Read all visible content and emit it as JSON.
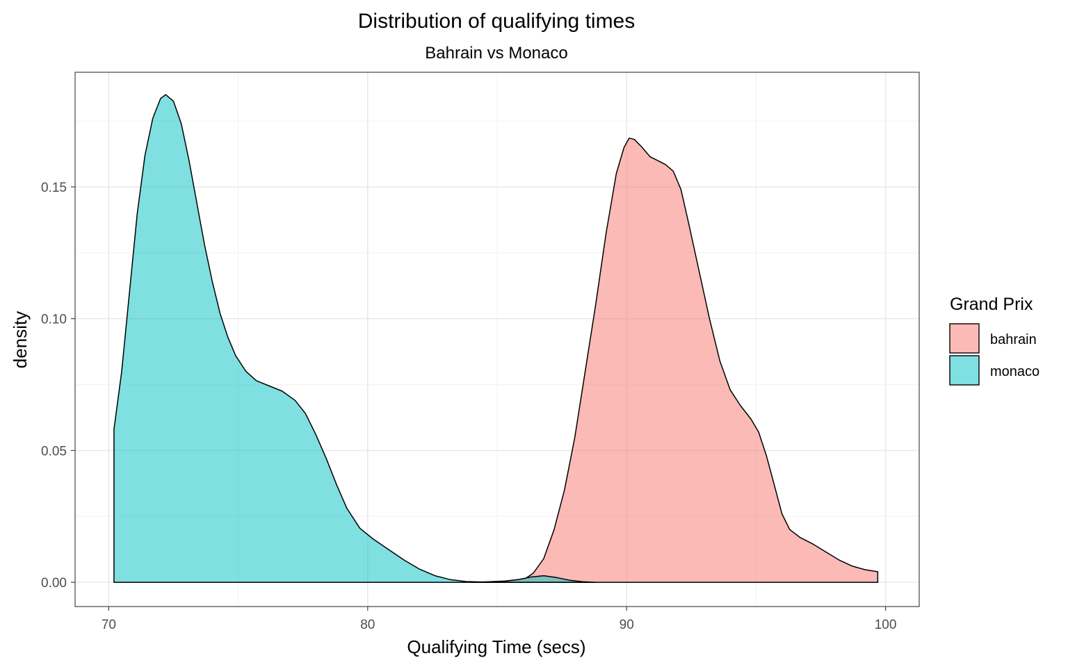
{
  "chart_data": {
    "type": "area",
    "title": "Distribution of qualifying times",
    "subtitle": "Bahrain vs Monaco",
    "xlabel": "Qualifying Time (secs)",
    "ylabel": "density",
    "xlim": [
      68.7,
      101.3
    ],
    "ylim": [
      -0.0092,
      0.1935
    ],
    "x_ticks": [
      70,
      80,
      90,
      100
    ],
    "x_tick_labels": [
      "70",
      "80",
      "90",
      "100"
    ],
    "y_ticks": [
      0.0,
      0.05,
      0.1,
      0.15
    ],
    "y_tick_labels": [
      "0.00",
      "0.05",
      "0.10",
      "0.15"
    ],
    "grid": true,
    "legend": {
      "title": "Grand Prix",
      "placement": "right"
    },
    "series": [
      {
        "name": "bahrain",
        "color": "#F8766D",
        "points": [
          [
            84.0,
            0.0
          ],
          [
            84.7,
            0.0002
          ],
          [
            85.3,
            0.0005
          ],
          [
            85.8,
            0.001
          ],
          [
            86.1,
            0.0015
          ],
          [
            86.4,
            0.0035
          ],
          [
            86.8,
            0.009
          ],
          [
            87.2,
            0.02
          ],
          [
            87.6,
            0.035
          ],
          [
            88.0,
            0.055
          ],
          [
            88.4,
            0.08
          ],
          [
            88.8,
            0.105
          ],
          [
            89.2,
            0.132
          ],
          [
            89.6,
            0.155
          ],
          [
            89.9,
            0.165
          ],
          [
            90.1,
            0.1685
          ],
          [
            90.3,
            0.168
          ],
          [
            90.6,
            0.165
          ],
          [
            90.9,
            0.1615
          ],
          [
            91.2,
            0.16
          ],
          [
            91.5,
            0.1585
          ],
          [
            91.8,
            0.156
          ],
          [
            92.1,
            0.149
          ],
          [
            92.4,
            0.136
          ],
          [
            92.8,
            0.118
          ],
          [
            93.2,
            0.1
          ],
          [
            93.6,
            0.084
          ],
          [
            94.0,
            0.073
          ],
          [
            94.4,
            0.067
          ],
          [
            94.8,
            0.062
          ],
          [
            95.1,
            0.057
          ],
          [
            95.4,
            0.048
          ],
          [
            95.7,
            0.037
          ],
          [
            96.0,
            0.026
          ],
          [
            96.3,
            0.02
          ],
          [
            96.7,
            0.017
          ],
          [
            97.2,
            0.0145
          ],
          [
            97.7,
            0.0115
          ],
          [
            98.2,
            0.0085
          ],
          [
            98.7,
            0.0062
          ],
          [
            99.2,
            0.0048
          ],
          [
            99.7,
            0.004
          ]
        ]
      },
      {
        "name": "monaco",
        "color": "#00BFC4",
        "points": [
          [
            70.2,
            0.058
          ],
          [
            70.5,
            0.08
          ],
          [
            70.8,
            0.11
          ],
          [
            71.1,
            0.14
          ],
          [
            71.4,
            0.162
          ],
          [
            71.7,
            0.176
          ],
          [
            72.0,
            0.1835
          ],
          [
            72.2,
            0.185
          ],
          [
            72.5,
            0.1825
          ],
          [
            72.8,
            0.174
          ],
          [
            73.1,
            0.16
          ],
          [
            73.4,
            0.144
          ],
          [
            73.7,
            0.128
          ],
          [
            74.0,
            0.114
          ],
          [
            74.3,
            0.102
          ],
          [
            74.6,
            0.093
          ],
          [
            74.9,
            0.086
          ],
          [
            75.3,
            0.08
          ],
          [
            75.7,
            0.0765
          ],
          [
            76.2,
            0.0745
          ],
          [
            76.7,
            0.0725
          ],
          [
            77.2,
            0.069
          ],
          [
            77.6,
            0.064
          ],
          [
            78.0,
            0.056
          ],
          [
            78.4,
            0.047
          ],
          [
            78.8,
            0.037
          ],
          [
            79.2,
            0.028
          ],
          [
            79.7,
            0.0205
          ],
          [
            80.2,
            0.0165
          ],
          [
            80.8,
            0.0125
          ],
          [
            81.4,
            0.0085
          ],
          [
            82.0,
            0.005
          ],
          [
            82.6,
            0.0025
          ],
          [
            83.2,
            0.001
          ],
          [
            83.8,
            0.0003
          ],
          [
            84.5,
            0.0001
          ],
          [
            85.2,
            0.0003
          ],
          [
            85.8,
            0.001
          ],
          [
            86.3,
            0.002
          ],
          [
            86.8,
            0.0025
          ],
          [
            87.3,
            0.0018
          ],
          [
            87.8,
            0.0008
          ],
          [
            88.3,
            0.0002
          ],
          [
            88.8,
            0.0
          ]
        ]
      }
    ]
  }
}
